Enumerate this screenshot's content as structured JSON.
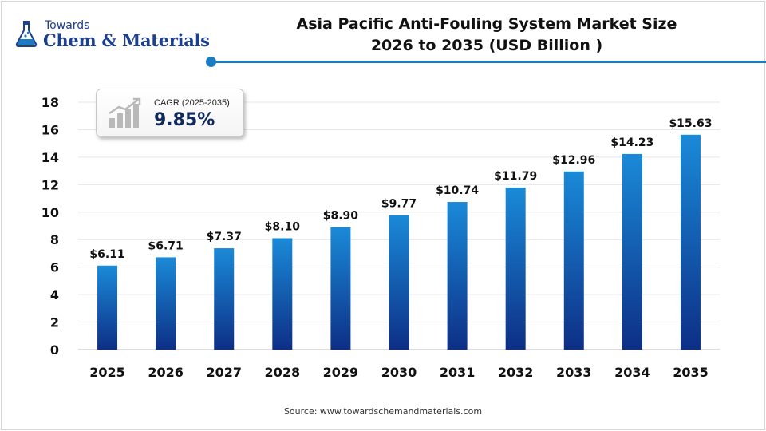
{
  "logo": {
    "line1": "Towards",
    "line2": "Chem & Materials"
  },
  "title": {
    "line1": "Asia Pacific Anti-Fouling System Market Size",
    "line2": "2026 to 2035  (USD Billion )"
  },
  "cagr": {
    "label": "CAGR (2025-2035)",
    "value": "9.85%",
    "icon": "growth-chart-icon"
  },
  "source": "Source: www.towardschemandmaterials.com",
  "colors": {
    "bar_top": "#1a8ad8",
    "bar_bottom": "#0d2f86",
    "brand": "#1d3f8f",
    "accent": "#1b7cc4"
  },
  "chart_data": {
    "type": "bar",
    "categories": [
      "2025",
      "2026",
      "2027",
      "2028",
      "2029",
      "2030",
      "2031",
      "2032",
      "2033",
      "2034",
      "2035"
    ],
    "values": [
      6.11,
      6.71,
      7.37,
      8.1,
      8.9,
      9.77,
      10.74,
      11.79,
      12.96,
      14.23,
      15.63
    ],
    "data_labels": [
      "$6.11",
      "$6.71",
      "$7.37",
      "$8.10",
      "$8.90",
      "$9.77",
      "$10.74",
      "$11.79",
      "$12.96",
      "$14.23",
      "$15.63"
    ],
    "y_ticks": [
      0,
      2,
      4,
      6,
      8,
      10,
      12,
      14,
      16,
      18
    ],
    "ylim": [
      0,
      18
    ],
    "grid": true,
    "title": "Asia Pacific Anti-Fouling System Market Size 2026 to 2035  (USD Billion )",
    "xlabel": "",
    "ylabel": ""
  }
}
